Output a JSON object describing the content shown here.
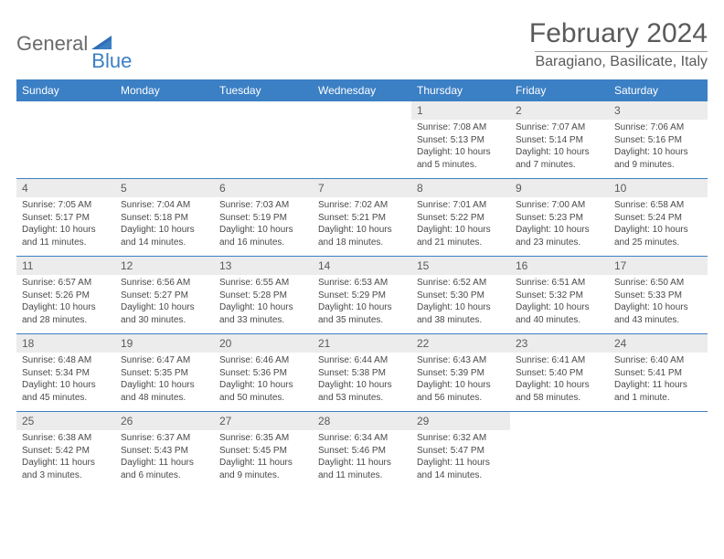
{
  "brand": {
    "part1": "General",
    "part2": "Blue"
  },
  "title": "February 2024",
  "location": "Baragiano, Basilicate, Italy",
  "colors": {
    "header_bg": "#3b7fc4",
    "header_text": "#ffffff",
    "daynum_bg": "#ececec",
    "text": "#494949",
    "rule": "#3b7fc4"
  },
  "day_labels": [
    "Sunday",
    "Monday",
    "Tuesday",
    "Wednesday",
    "Thursday",
    "Friday",
    "Saturday"
  ],
  "weeks": [
    [
      {
        "n": "",
        "sr": "",
        "ss": "",
        "d1": "",
        "d2": ""
      },
      {
        "n": "",
        "sr": "",
        "ss": "",
        "d1": "",
        "d2": ""
      },
      {
        "n": "",
        "sr": "",
        "ss": "",
        "d1": "",
        "d2": ""
      },
      {
        "n": "",
        "sr": "",
        "ss": "",
        "d1": "",
        "d2": ""
      },
      {
        "n": "1",
        "sr": "Sunrise: 7:08 AM",
        "ss": "Sunset: 5:13 PM",
        "d1": "Daylight: 10 hours",
        "d2": "and 5 minutes."
      },
      {
        "n": "2",
        "sr": "Sunrise: 7:07 AM",
        "ss": "Sunset: 5:14 PM",
        "d1": "Daylight: 10 hours",
        "d2": "and 7 minutes."
      },
      {
        "n": "3",
        "sr": "Sunrise: 7:06 AM",
        "ss": "Sunset: 5:16 PM",
        "d1": "Daylight: 10 hours",
        "d2": "and 9 minutes."
      }
    ],
    [
      {
        "n": "4",
        "sr": "Sunrise: 7:05 AM",
        "ss": "Sunset: 5:17 PM",
        "d1": "Daylight: 10 hours",
        "d2": "and 11 minutes."
      },
      {
        "n": "5",
        "sr": "Sunrise: 7:04 AM",
        "ss": "Sunset: 5:18 PM",
        "d1": "Daylight: 10 hours",
        "d2": "and 14 minutes."
      },
      {
        "n": "6",
        "sr": "Sunrise: 7:03 AM",
        "ss": "Sunset: 5:19 PM",
        "d1": "Daylight: 10 hours",
        "d2": "and 16 minutes."
      },
      {
        "n": "7",
        "sr": "Sunrise: 7:02 AM",
        "ss": "Sunset: 5:21 PM",
        "d1": "Daylight: 10 hours",
        "d2": "and 18 minutes."
      },
      {
        "n": "8",
        "sr": "Sunrise: 7:01 AM",
        "ss": "Sunset: 5:22 PM",
        "d1": "Daylight: 10 hours",
        "d2": "and 21 minutes."
      },
      {
        "n": "9",
        "sr": "Sunrise: 7:00 AM",
        "ss": "Sunset: 5:23 PM",
        "d1": "Daylight: 10 hours",
        "d2": "and 23 minutes."
      },
      {
        "n": "10",
        "sr": "Sunrise: 6:58 AM",
        "ss": "Sunset: 5:24 PM",
        "d1": "Daylight: 10 hours",
        "d2": "and 25 minutes."
      }
    ],
    [
      {
        "n": "11",
        "sr": "Sunrise: 6:57 AM",
        "ss": "Sunset: 5:26 PM",
        "d1": "Daylight: 10 hours",
        "d2": "and 28 minutes."
      },
      {
        "n": "12",
        "sr": "Sunrise: 6:56 AM",
        "ss": "Sunset: 5:27 PM",
        "d1": "Daylight: 10 hours",
        "d2": "and 30 minutes."
      },
      {
        "n": "13",
        "sr": "Sunrise: 6:55 AM",
        "ss": "Sunset: 5:28 PM",
        "d1": "Daylight: 10 hours",
        "d2": "and 33 minutes."
      },
      {
        "n": "14",
        "sr": "Sunrise: 6:53 AM",
        "ss": "Sunset: 5:29 PM",
        "d1": "Daylight: 10 hours",
        "d2": "and 35 minutes."
      },
      {
        "n": "15",
        "sr": "Sunrise: 6:52 AM",
        "ss": "Sunset: 5:30 PM",
        "d1": "Daylight: 10 hours",
        "d2": "and 38 minutes."
      },
      {
        "n": "16",
        "sr": "Sunrise: 6:51 AM",
        "ss": "Sunset: 5:32 PM",
        "d1": "Daylight: 10 hours",
        "d2": "and 40 minutes."
      },
      {
        "n": "17",
        "sr": "Sunrise: 6:50 AM",
        "ss": "Sunset: 5:33 PM",
        "d1": "Daylight: 10 hours",
        "d2": "and 43 minutes."
      }
    ],
    [
      {
        "n": "18",
        "sr": "Sunrise: 6:48 AM",
        "ss": "Sunset: 5:34 PM",
        "d1": "Daylight: 10 hours",
        "d2": "and 45 minutes."
      },
      {
        "n": "19",
        "sr": "Sunrise: 6:47 AM",
        "ss": "Sunset: 5:35 PM",
        "d1": "Daylight: 10 hours",
        "d2": "and 48 minutes."
      },
      {
        "n": "20",
        "sr": "Sunrise: 6:46 AM",
        "ss": "Sunset: 5:36 PM",
        "d1": "Daylight: 10 hours",
        "d2": "and 50 minutes."
      },
      {
        "n": "21",
        "sr": "Sunrise: 6:44 AM",
        "ss": "Sunset: 5:38 PM",
        "d1": "Daylight: 10 hours",
        "d2": "and 53 minutes."
      },
      {
        "n": "22",
        "sr": "Sunrise: 6:43 AM",
        "ss": "Sunset: 5:39 PM",
        "d1": "Daylight: 10 hours",
        "d2": "and 56 minutes."
      },
      {
        "n": "23",
        "sr": "Sunrise: 6:41 AM",
        "ss": "Sunset: 5:40 PM",
        "d1": "Daylight: 10 hours",
        "d2": "and 58 minutes."
      },
      {
        "n": "24",
        "sr": "Sunrise: 6:40 AM",
        "ss": "Sunset: 5:41 PM",
        "d1": "Daylight: 11 hours",
        "d2": "and 1 minute."
      }
    ],
    [
      {
        "n": "25",
        "sr": "Sunrise: 6:38 AM",
        "ss": "Sunset: 5:42 PM",
        "d1": "Daylight: 11 hours",
        "d2": "and 3 minutes."
      },
      {
        "n": "26",
        "sr": "Sunrise: 6:37 AM",
        "ss": "Sunset: 5:43 PM",
        "d1": "Daylight: 11 hours",
        "d2": "and 6 minutes."
      },
      {
        "n": "27",
        "sr": "Sunrise: 6:35 AM",
        "ss": "Sunset: 5:45 PM",
        "d1": "Daylight: 11 hours",
        "d2": "and 9 minutes."
      },
      {
        "n": "28",
        "sr": "Sunrise: 6:34 AM",
        "ss": "Sunset: 5:46 PM",
        "d1": "Daylight: 11 hours",
        "d2": "and 11 minutes."
      },
      {
        "n": "29",
        "sr": "Sunrise: 6:32 AM",
        "ss": "Sunset: 5:47 PM",
        "d1": "Daylight: 11 hours",
        "d2": "and 14 minutes."
      },
      {
        "n": "",
        "sr": "",
        "ss": "",
        "d1": "",
        "d2": ""
      },
      {
        "n": "",
        "sr": "",
        "ss": "",
        "d1": "",
        "d2": ""
      }
    ]
  ]
}
